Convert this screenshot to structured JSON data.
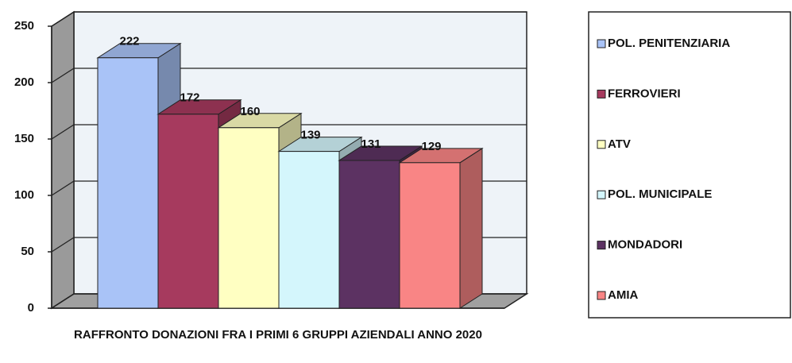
{
  "chart_data": {
    "type": "bar3d",
    "title": "RAFFRONTO DONAZIONI FRA  I PRIMI 6 GRUPPI AZIENDALI ANNO 2020",
    "series": [
      {
        "name": "POL. PENITENZIARIA",
        "color": "#a9c3f7",
        "values": [
          222
        ]
      },
      {
        "name": "FERROVIERI",
        "color": "#a63a5e",
        "values": [
          172
        ]
      },
      {
        "name": "ATV",
        "color": "#ffffc2",
        "values": [
          160
        ]
      },
      {
        "name": "POL. MUNICIPALE",
        "color": "#d4f6fc",
        "values": [
          139
        ]
      },
      {
        "name": "MONDADORI",
        "color": "#5c3262",
        "values": [
          131
        ]
      },
      {
        "name": "AMIA",
        "color": "#f98585",
        "values": [
          129
        ]
      }
    ],
    "ylim": [
      0,
      250
    ],
    "yticks": [
      0,
      50,
      100,
      150,
      200,
      250
    ],
    "grid": true,
    "legend": "right"
  }
}
